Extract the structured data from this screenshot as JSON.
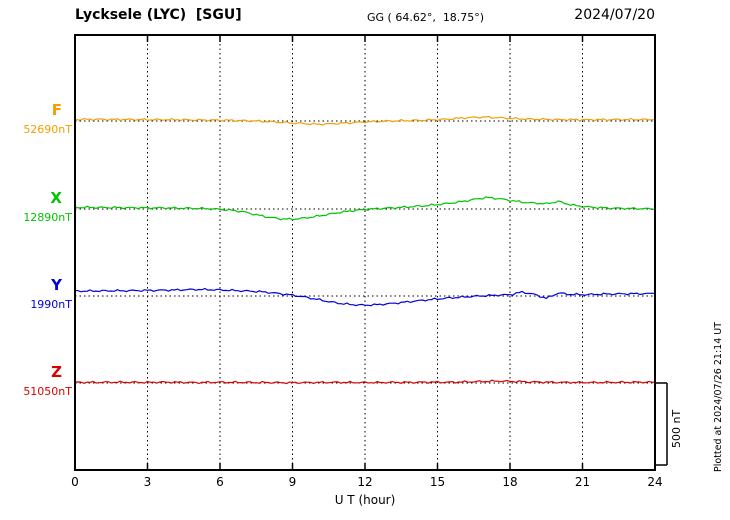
{
  "header": {
    "station": "Lycksele (LYC)  [SGU]",
    "coords": "GG ( 64.62°,  18.75°)",
    "date": "2024/07/20"
  },
  "axis": {
    "xlabel": "U T (hour)",
    "xticks": [
      "0",
      "3",
      "6",
      "9",
      "12",
      "15",
      "18",
      "21",
      "24"
    ],
    "xlim": [
      0,
      24
    ]
  },
  "scale_bar": {
    "label": "500 nT",
    "nT": 500
  },
  "footer_note": "Plotted at 2024/07/26 21:14 UT",
  "chart_data": {
    "type": "line",
    "title": "Lycksele (LYC) [SGU] magnetogram",
    "date": "2024/07/20",
    "xlabel": "U T (hour)",
    "xlim": [
      0,
      24
    ],
    "x_start_hour": 0,
    "x_step_hours": 0.5,
    "scale_bar_nT": 500,
    "grid": "dotted vertical every 3 h, dotted baseline per component",
    "series": [
      {
        "name": "F",
        "color": "#f0a000",
        "baseline_label": "52690nT",
        "baseline_nT": 52690,
        "deviation_nT": [
          10,
          10,
          10,
          9,
          9,
          9,
          8,
          8,
          8,
          8,
          6,
          6,
          5,
          4,
          2,
          0,
          -4,
          -8,
          -12,
          -16,
          -20,
          -18,
          -14,
          -10,
          -6,
          -3,
          0,
          2,
          3,
          5,
          8,
          12,
          18,
          22,
          24,
          20,
          16,
          13,
          11,
          10,
          8,
          8,
          8,
          8,
          8,
          9,
          9,
          9,
          9
        ]
      },
      {
        "name": "X",
        "color": "#00c400",
        "baseline_label": "12890nT",
        "baseline_nT": 12890,
        "deviation_nT": [
          10,
          10,
          9,
          9,
          8,
          8,
          7,
          7,
          6,
          5,
          4,
          2,
          -2,
          -8,
          -18,
          -35,
          -50,
          -60,
          -62,
          -55,
          -45,
          -32,
          -20,
          -10,
          -3,
          2,
          6,
          10,
          15,
          20,
          27,
          35,
          45,
          58,
          70,
          64,
          52,
          42,
          36,
          32,
          46,
          26,
          15,
          10,
          6,
          4,
          3,
          2,
          1
        ]
      },
      {
        "name": "Y",
        "color": "#0000dd",
        "baseline_label": "1990nT",
        "baseline_nT": 1990,
        "deviation_nT": [
          30,
          30,
          31,
          32,
          32,
          33,
          34,
          35,
          36,
          38,
          40,
          39,
          37,
          34,
          31,
          28,
          22,
          14,
          5,
          -6,
          -20,
          -34,
          -46,
          -53,
          -56,
          -53,
          -47,
          -40,
          -32,
          -25,
          -18,
          -12,
          -7,
          -2,
          2,
          5,
          8,
          24,
          10,
          -14,
          18,
          10,
          8,
          10,
          12,
          13,
          14,
          14,
          15
        ]
      },
      {
        "name": "Z",
        "color": "#dd0000",
        "baseline_label": "51050nT",
        "baseline_nT": 51050,
        "deviation_nT": [
          4,
          4,
          4,
          5,
          5,
          4,
          4,
          5,
          5,
          4,
          3,
          4,
          5,
          4,
          4,
          3,
          3,
          2,
          2,
          3,
          3,
          4,
          4,
          3,
          3,
          3,
          4,
          4,
          4,
          5,
          5,
          5,
          6,
          8,
          10,
          12,
          10,
          8,
          6,
          5,
          4,
          4,
          3,
          3,
          4,
          4,
          5,
          5,
          5
        ]
      }
    ]
  }
}
